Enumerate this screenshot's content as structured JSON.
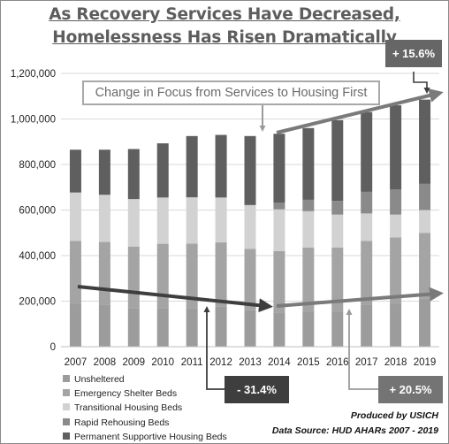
{
  "title_line1": "As Recovery Services Have Decreased,",
  "title_line2": "Homelessness Has Risen Dramatically",
  "annotations": {
    "focus_note": "Change in Focus from Services to Housing First",
    "callout_top": "+ 15.6%",
    "callout_mid": "- 31.4%",
    "callout_bottom": "+ 20.5%"
  },
  "credits": {
    "produced": "Produced by USICH",
    "source": "Data Source:  HUD AHARs 2007 - 2019"
  },
  "colors": {
    "unsheltered": "#9c9c9c",
    "emergency_shelter": "#a4a4a4",
    "transitional": "#d2d2d2",
    "rapid_rehousing": "#8a8a8a",
    "permanent_supportive": "#5f5f5f",
    "callout_dark": "#3e3e3e",
    "callout_mid": "#666666",
    "callout_light": "#747474"
  },
  "chart_data": {
    "type": "bar",
    "stacked": true,
    "categories": [
      "2007",
      "2008",
      "2009",
      "2010",
      "2011",
      "2012",
      "2013",
      "2014",
      "2015",
      "2016",
      "2017",
      "2018",
      "2019"
    ],
    "ylim": [
      0,
      1200000
    ],
    "yticks": [
      0,
      200000,
      400000,
      600000,
      800000,
      1000000,
      1200000
    ],
    "ytick_labels": [
      "0",
      "200,000",
      "400,000",
      "600,000",
      "800,000",
      "1,000,000",
      "1,200,000"
    ],
    "grid": true,
    "legend_position": "bottom-left",
    "series": [
      {
        "name": "Unsheltered",
        "values": [
          190000,
          185000,
          170000,
          170000,
          170000,
          175000,
          160000,
          150000,
          155000,
          155000,
          185000,
          190000,
          210000
        ]
      },
      {
        "name": "Emergency Shelter Beds",
        "values": [
          275000,
          275000,
          270000,
          282000,
          283000,
          283000,
          270000,
          270000,
          280000,
          280000,
          280000,
          290000,
          290000
        ]
      },
      {
        "name": "Transitional Housing Beds",
        "values": [
          212000,
          207000,
          208000,
          203000,
          203000,
          197000,
          192000,
          183000,
          160000,
          145000,
          120000,
          100000,
          100000
        ]
      },
      {
        "name": "Rapid Rehousing Beds",
        "values": [
          0,
          0,
          0,
          0,
          0,
          0,
          0,
          30000,
          50000,
          60000,
          95000,
          110000,
          115000
        ]
      },
      {
        "name": "Permanent Supportive Housing Beds",
        "values": [
          188000,
          198000,
          220000,
          238000,
          269000,
          275000,
          303000,
          302000,
          315000,
          355000,
          350000,
          370000,
          370000
        ]
      }
    ]
  }
}
